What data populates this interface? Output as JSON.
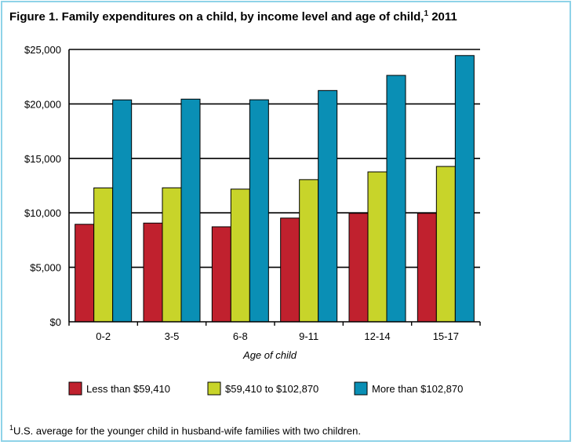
{
  "title": {
    "text": "Figure 1. Family expenditures on a child, by income level and age of child,",
    "sup": "1",
    "year": " 2011"
  },
  "footnote": {
    "sup": "1",
    "text": "U.S. average for the younger child in husband-wife families with two children."
  },
  "colors": {
    "border": "#8fd3e8",
    "series": [
      "#c0212e",
      "#c8d42a",
      "#0a8fb5"
    ]
  },
  "chart_data": {
    "type": "bar",
    "title": "Figure 1. Family expenditures on a child, by income level and age of child,1 2011",
    "xlabel": "Age of child",
    "ylabel": "",
    "ylim": [
      0,
      25000
    ],
    "yticks": [
      0,
      5000,
      10000,
      15000,
      20000,
      25000
    ],
    "ytick_labels": [
      "$0",
      "$5,000",
      "$10,000",
      "$15,000",
      "$20,000",
      "$25,000"
    ],
    "grid": true,
    "legend": "bottom",
    "categories": [
      "0-2",
      "3-5",
      "6-8",
      "9-11",
      "12-14",
      "15-17"
    ],
    "series": [
      {
        "name": "Less than $59,410",
        "values": [
          8950,
          9060,
          8720,
          9520,
          9960,
          9960
        ]
      },
      {
        "name": "$59,410 to $102,870",
        "values": [
          12290,
          12300,
          12180,
          13050,
          13760,
          14260
        ]
      },
      {
        "name": "More than $102,870",
        "values": [
          20370,
          20440,
          20380,
          21230,
          22620,
          24440
        ]
      }
    ]
  }
}
